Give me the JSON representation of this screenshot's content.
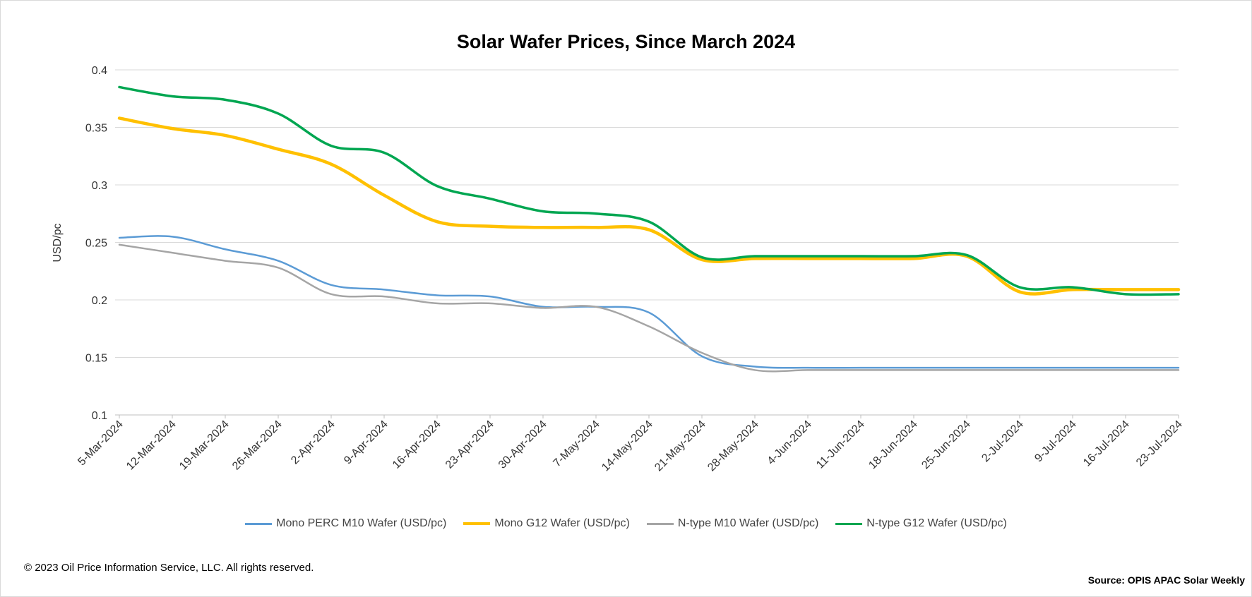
{
  "chart_data": {
    "type": "line",
    "title": "Solar Wafer Prices, Since March 2024",
    "ylabel": "USD/pc",
    "xlabel": "",
    "ylim": [
      0.1,
      0.4
    ],
    "yticks": [
      "0.1",
      "0.15",
      "0.2",
      "0.25",
      "0.3",
      "0.35",
      "0.4"
    ],
    "grid": true,
    "legend": "bottom",
    "categories": [
      "5-Mar-2024",
      "12-Mar-2024",
      "19-Mar-2024",
      "26-Mar-2024",
      "2-Apr-2024",
      "9-Apr-2024",
      "16-Apr-2024",
      "23-Apr-2024",
      "30-Apr-2024",
      "7-May-2024",
      "14-May-2024",
      "21-May-2024",
      "28-May-2024",
      "4-Jun-2024",
      "11-Jun-2024",
      "18-Jun-2024",
      "25-Jun-2024",
      "2-Jul-2024",
      "9-Jul-2024",
      "16-Jul-2024",
      "23-Jul-2024"
    ],
    "series": [
      {
        "name": "Mono PERC M10 Wafer (USD/pc)",
        "color": "#5b9bd5",
        "width": 2.5,
        "values": [
          0.254,
          0.255,
          0.244,
          0.234,
          0.213,
          0.209,
          0.204,
          0.203,
          0.194,
          0.194,
          0.189,
          0.151,
          0.142,
          0.141,
          0.141,
          0.141,
          0.141,
          0.141,
          0.141,
          0.141,
          0.141
        ]
      },
      {
        "name": "Mono G12 Wafer (USD/pc)",
        "color": "#ffc000",
        "width": 4.5,
        "values": [
          0.358,
          0.349,
          0.343,
          0.331,
          0.318,
          0.291,
          0.268,
          0.264,
          0.263,
          0.263,
          0.261,
          0.235,
          0.236,
          0.236,
          0.236,
          0.236,
          0.238,
          0.207,
          0.209,
          0.209,
          0.209
        ]
      },
      {
        "name": "N-type M10 Wafer (USD/pc)",
        "color": "#a5a5a5",
        "width": 2.5,
        "values": [
          0.248,
          0.241,
          0.234,
          0.228,
          0.205,
          0.203,
          0.197,
          0.197,
          0.193,
          0.194,
          0.177,
          0.154,
          0.139,
          0.139,
          0.139,
          0.139,
          0.139,
          0.139,
          0.139,
          0.139,
          0.139
        ]
      },
      {
        "name": "N-type G12 Wafer (USD/pc)",
        "color": "#00a651",
        "width": 3.5,
        "values": [
          0.385,
          0.377,
          0.374,
          0.362,
          0.334,
          0.328,
          0.299,
          0.288,
          0.277,
          0.275,
          0.268,
          0.237,
          0.238,
          0.238,
          0.238,
          0.238,
          0.239,
          0.211,
          0.211,
          0.205,
          0.205
        ]
      }
    ]
  },
  "footer": {
    "copyright": "© 2023 Oil Price Information Service, LLC. All rights reserved.",
    "source": "Source: OPIS APAC Solar Weekly"
  }
}
